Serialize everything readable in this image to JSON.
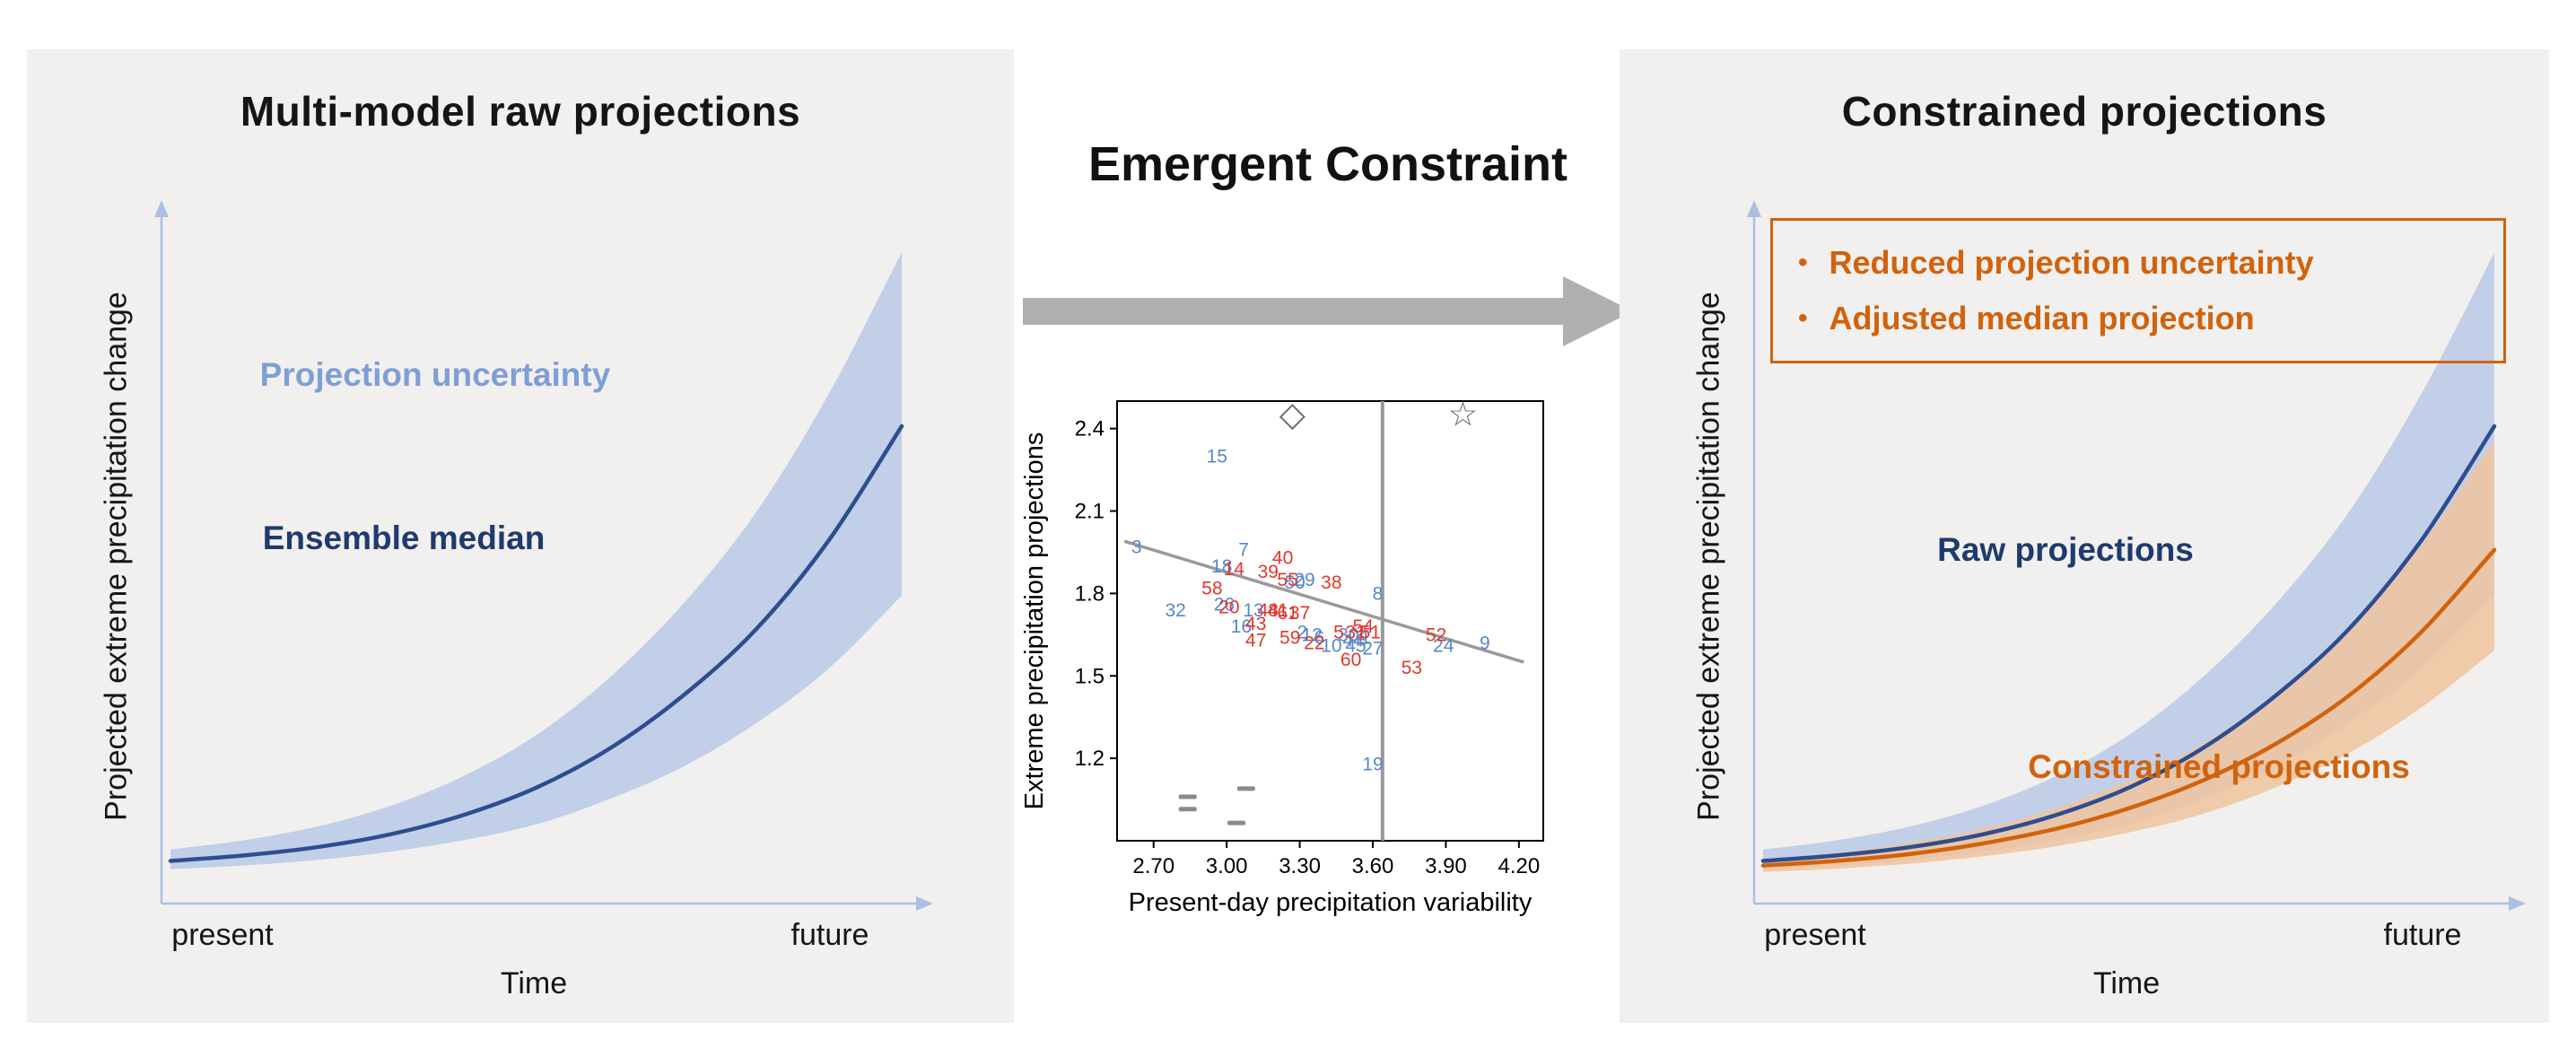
{
  "left": {
    "title": "Multi-model raw projections",
    "y_axis_label": "Projected extreme precipitation change",
    "x_axis_label": "Time",
    "x_tick_left": "present",
    "x_tick_right": "future",
    "band_label": "Projection uncertainty",
    "median_label": "Ensemble median"
  },
  "middle": {
    "title": "Emergent Constraint"
  },
  "right": {
    "title": "Constrained projections",
    "bullet_glyph": "•",
    "bullets": [
      "Reduced projection uncertainty",
      "Adjusted median projection"
    ],
    "y_axis_label": "Projected extreme precipitation change",
    "x_axis_label": "Time",
    "x_tick_left": "present",
    "x_tick_right": "future",
    "raw_label": "Raw projections",
    "constrained_label": "Constrained projections"
  },
  "colors": {
    "panel_bg": "#f1f0ef",
    "axis": "#a9c0e2",
    "blue_line": "#2e4d91",
    "blue_band": "#b7c7e6",
    "blue_label": "#7f9ed6",
    "navy_text": "#1f3a6e",
    "orange": "#d2620c",
    "orange_band": "#f0c49e",
    "scatter_blue": "#5488cc",
    "scatter_red": "#e0372c",
    "gray": "#9a9a9a",
    "arrow_gray": "#b1b0af"
  },
  "chart_data": [
    {
      "type": "area",
      "panel": "left",
      "title": "Multi-model raw projections",
      "xlabel": "Time",
      "ylabel": "Projected extreme precipitation change",
      "x_categories": [
        "present",
        "future"
      ],
      "x": [
        0,
        1,
        2,
        3,
        4,
        5,
        6,
        7,
        8,
        9,
        10
      ],
      "series": [
        {
          "name": "Ensemble median",
          "band_name": "Projection uncertainty",
          "median": [
            0.05,
            0.062,
            0.08,
            0.108,
            0.15,
            0.21,
            0.295,
            0.41,
            0.555,
            0.75,
            1.0
          ],
          "upper": [
            0.075,
            0.095,
            0.125,
            0.17,
            0.235,
            0.325,
            0.45,
            0.61,
            0.81,
            1.07,
            1.38
          ],
          "lower": [
            0.032,
            0.04,
            0.052,
            0.07,
            0.095,
            0.13,
            0.185,
            0.255,
            0.35,
            0.47,
            0.63
          ],
          "line_color_key": "blue_line",
          "band_color_key": "blue_band",
          "band_opacity": 0.8
        }
      ]
    },
    {
      "type": "scatter",
      "panel": "middle",
      "title": "Emergent Constraint",
      "xlabel": "Present-day precipitation variability",
      "ylabel": "Extreme precipitation projections",
      "xlim": [
        2.55,
        4.3
      ],
      "ylim": [
        0.9,
        2.5
      ],
      "x_ticks": [
        2.7,
        3.0,
        3.3,
        3.6,
        3.9,
        4.2
      ],
      "x_tick_labels": [
        "2.70",
        "3.00",
        "3.30",
        "3.60",
        "3.90",
        "4.20"
      ],
      "y_ticks": [
        1.2,
        1.5,
        1.8,
        2.1,
        2.4
      ],
      "y_tick_labels": [
        "1.2",
        "1.5",
        "1.8",
        "2.1",
        "2.4"
      ],
      "constraint_line_x": 3.64,
      "fit_line": {
        "x1": 2.58,
        "y1": 1.99,
        "x2": 4.22,
        "y2": 1.55
      },
      "markers": [
        {
          "shape": "diamond",
          "x": 3.27,
          "y": 2.45
        },
        {
          "shape": "star",
          "x": 3.97,
          "y": 2.45
        }
      ],
      "observations": [
        [
          2.84,
          1.06
        ],
        [
          2.84,
          1.015
        ],
        [
          3.08,
          1.09
        ],
        [
          3.04,
          0.965
        ]
      ],
      "points": [
        {
          "label": "15",
          "x": 2.96,
          "y": 2.3,
          "group": "blue"
        },
        {
          "label": "3",
          "x": 2.63,
          "y": 1.97,
          "group": "blue"
        },
        {
          "label": "7",
          "x": 3.07,
          "y": 1.96,
          "group": "blue"
        },
        {
          "label": "18",
          "x": 2.98,
          "y": 1.9,
          "group": "blue"
        },
        {
          "label": "50",
          "x": 3.28,
          "y": 1.84,
          "group": "blue"
        },
        {
          "label": "29",
          "x": 3.32,
          "y": 1.85,
          "group": "blue"
        },
        {
          "label": "32",
          "x": 2.79,
          "y": 1.74,
          "group": "blue"
        },
        {
          "label": "26",
          "x": 2.99,
          "y": 1.76,
          "group": "blue"
        },
        {
          "label": "13",
          "x": 3.11,
          "y": 1.74,
          "group": "blue"
        },
        {
          "label": "16",
          "x": 3.06,
          "y": 1.68,
          "group": "blue"
        },
        {
          "label": "2",
          "x": 3.31,
          "y": 1.66,
          "group": "blue"
        },
        {
          "label": "12",
          "x": 3.35,
          "y": 1.65,
          "group": "blue"
        },
        {
          "label": "6",
          "x": 3.38,
          "y": 1.64,
          "group": "blue"
        },
        {
          "label": "10",
          "x": 3.43,
          "y": 1.61,
          "group": "blue"
        },
        {
          "label": "30",
          "x": 3.5,
          "y": 1.65,
          "group": "blue"
        },
        {
          "label": "44",
          "x": 3.52,
          "y": 1.63,
          "group": "blue"
        },
        {
          "label": "1",
          "x": 3.57,
          "y": 1.64,
          "group": "blue"
        },
        {
          "label": "45",
          "x": 3.53,
          "y": 1.61,
          "group": "blue"
        },
        {
          "label": "27",
          "x": 3.6,
          "y": 1.6,
          "group": "blue"
        },
        {
          "label": "8",
          "x": 3.62,
          "y": 1.8,
          "group": "blue"
        },
        {
          "label": "19",
          "x": 3.6,
          "y": 1.18,
          "group": "blue"
        },
        {
          "label": "24",
          "x": 3.89,
          "y": 1.61,
          "group": "blue"
        },
        {
          "label": "9",
          "x": 4.06,
          "y": 1.62,
          "group": "blue"
        },
        {
          "label": "14",
          "x": 3.03,
          "y": 1.89,
          "group": "red"
        },
        {
          "label": "40",
          "x": 3.23,
          "y": 1.93,
          "group": "red"
        },
        {
          "label": "39",
          "x": 3.17,
          "y": 1.88,
          "group": "red"
        },
        {
          "label": "58",
          "x": 2.94,
          "y": 1.82,
          "group": "red"
        },
        {
          "label": "55",
          "x": 3.25,
          "y": 1.85,
          "group": "red"
        },
        {
          "label": "38",
          "x": 3.43,
          "y": 1.84,
          "group": "red"
        },
        {
          "label": "20",
          "x": 3.01,
          "y": 1.75,
          "group": "red"
        },
        {
          "label": "48",
          "x": 3.17,
          "y": 1.74,
          "group": "red"
        },
        {
          "label": "41",
          "x": 3.21,
          "y": 1.74,
          "group": "red"
        },
        {
          "label": "61",
          "x": 3.25,
          "y": 1.73,
          "group": "red"
        },
        {
          "label": "37",
          "x": 3.3,
          "y": 1.73,
          "group": "red"
        },
        {
          "label": "43",
          "x": 3.12,
          "y": 1.69,
          "group": "red"
        },
        {
          "label": "47",
          "x": 3.12,
          "y": 1.63,
          "group": "red"
        },
        {
          "label": "59",
          "x": 3.26,
          "y": 1.64,
          "group": "red"
        },
        {
          "label": "5",
          "x": 3.46,
          "y": 1.66,
          "group": "red"
        },
        {
          "label": "31",
          "x": 3.53,
          "y": 1.66,
          "group": "red"
        },
        {
          "label": "54",
          "x": 3.56,
          "y": 1.68,
          "group": "red"
        },
        {
          "label": "51",
          "x": 3.59,
          "y": 1.66,
          "group": "red"
        },
        {
          "label": "60",
          "x": 3.51,
          "y": 1.56,
          "group": "red"
        },
        {
          "label": "22",
          "x": 3.36,
          "y": 1.62,
          "group": "red"
        },
        {
          "label": "52",
          "x": 3.86,
          "y": 1.65,
          "group": "red"
        },
        {
          "label": "53",
          "x": 3.76,
          "y": 1.53,
          "group": "red"
        }
      ]
    },
    {
      "type": "area",
      "panel": "right",
      "title": "Constrained projections",
      "xlabel": "Time",
      "ylabel": "Projected extreme precipitation change",
      "x_categories": [
        "present",
        "future"
      ],
      "x": [
        0,
        1,
        2,
        3,
        4,
        5,
        6,
        7,
        8,
        9,
        10
      ],
      "series": [
        {
          "name": "Raw projections",
          "median": [
            0.05,
            0.062,
            0.08,
            0.108,
            0.15,
            0.21,
            0.295,
            0.41,
            0.555,
            0.75,
            1.0
          ],
          "upper": [
            0.075,
            0.095,
            0.125,
            0.17,
            0.235,
            0.325,
            0.45,
            0.61,
            0.81,
            1.07,
            1.38
          ],
          "lower": [
            0.032,
            0.04,
            0.052,
            0.07,
            0.095,
            0.13,
            0.185,
            0.255,
            0.35,
            0.47,
            0.63
          ],
          "line_color_key": "blue_line",
          "band_color_key": "blue_band",
          "band_opacity": 0.8
        },
        {
          "name": "Constrained projections",
          "median": [
            0.04,
            0.05,
            0.065,
            0.088,
            0.12,
            0.165,
            0.225,
            0.305,
            0.41,
            0.55,
            0.73
          ],
          "upper": [
            0.052,
            0.067,
            0.09,
            0.12,
            0.165,
            0.225,
            0.305,
            0.415,
            0.555,
            0.74,
            0.97
          ],
          "lower": [
            0.026,
            0.033,
            0.044,
            0.06,
            0.082,
            0.112,
            0.152,
            0.21,
            0.285,
            0.385,
            0.51
          ],
          "line_color_key": "orange",
          "band_color_key": "orange_band",
          "band_opacity": 0.85
        }
      ]
    }
  ]
}
